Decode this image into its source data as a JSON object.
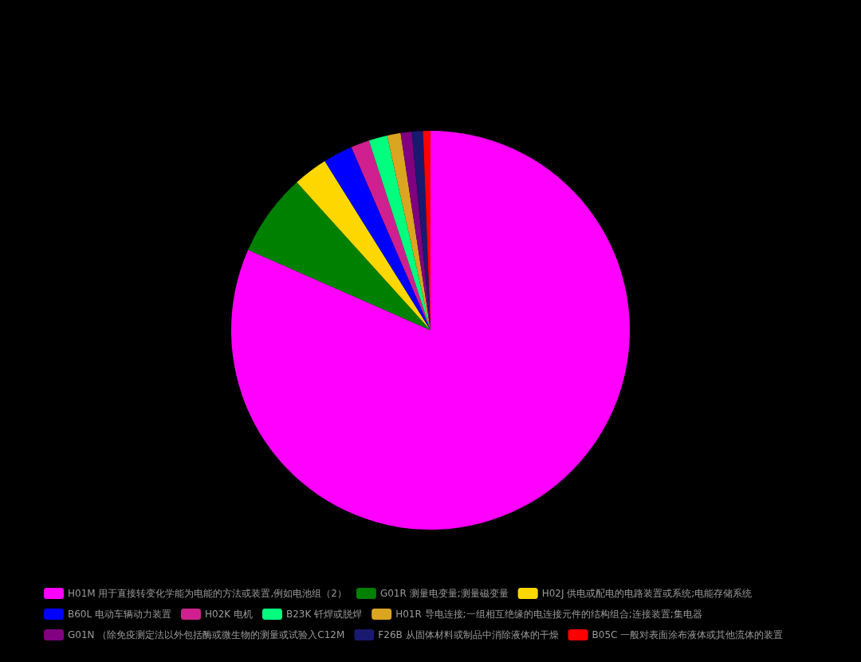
{
  "chart_data": {
    "type": "pie",
    "categories": [
      "H01M 用于直接转变化学能为电能的方法或装置,例如电池组（2）",
      "G01R 测量电变量;测量磁变量",
      "H02J 供电或配电的电路装置或系统;电能存储系统",
      "B60L 电动车辆动力装置",
      "H02K 电机",
      "B23K 钎焊或脱焊",
      "H01R 导电连接;一组相互绝缘的电连接元件的结构组合;连接装置;集电器",
      "G01N （除免疫测定法以外包括酶或微生物的测量或试验入C12M",
      "F26B 从固体材料或制品中消除液体的干燥",
      "B05C 一般对表面涂布液体或其他流体的装置"
    ],
    "values": [
      81.6,
      6.7,
      2.8,
      2.4,
      1.5,
      1.5,
      1.1,
      0.9,
      0.9,
      0.6
    ],
    "colors": [
      "#ff00ff",
      "#008000",
      "#ffd700",
      "#0000ff",
      "#d02090",
      "#00ff7f",
      "#daa520",
      "#800080",
      "#191970",
      "#ff0000"
    ],
    "legend": "bottom"
  }
}
